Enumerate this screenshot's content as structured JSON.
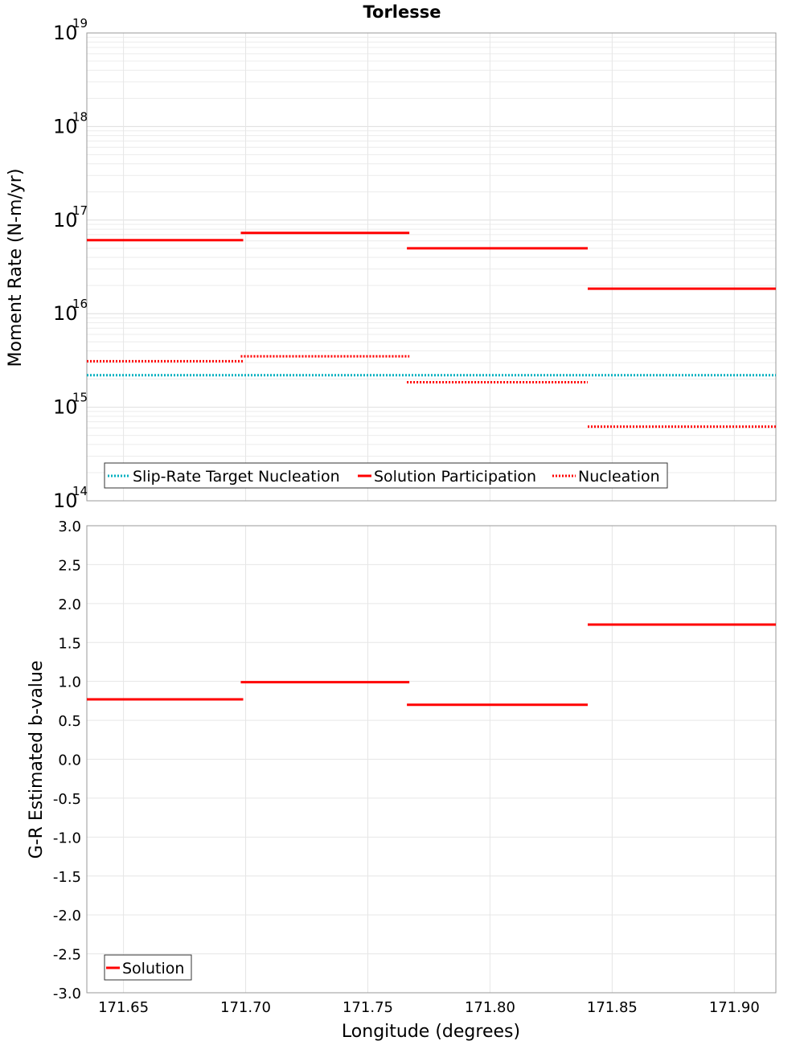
{
  "chart_data": [
    {
      "type": "line",
      "title": "Torlesse",
      "xlabel": "",
      "ylabel": "Moment Rate (N-m/yr)",
      "yscale": "log",
      "xlim": [
        171.635,
        171.917
      ],
      "ylim": [
        100000000000000.0,
        1e+19
      ],
      "ytick_exponents": [
        14,
        15,
        16,
        17,
        18,
        19
      ],
      "ytick_base": "10",
      "grid": true,
      "legend_position": "bottom-left",
      "series": [
        {
          "name": "Slip-Rate Target Nucleation",
          "style": "dotted",
          "color": "#00b0c0",
          "segments": [
            {
              "x0": 171.635,
              "x1": 171.917,
              "y": 2200000000000000.0
            }
          ]
        },
        {
          "name": "Solution Participation",
          "style": "solid",
          "color": "#ff0000",
          "segments": [
            {
              "x0": 171.635,
              "x1": 171.699,
              "y": 6.1e+16
            },
            {
              "x0": 171.698,
              "x1": 171.767,
              "y": 7.3e+16
            },
            {
              "x0": 171.766,
              "x1": 171.84,
              "y": 5e+16
            },
            {
              "x0": 171.84,
              "x1": 171.917,
              "y": 1.85e+16
            }
          ]
        },
        {
          "name": "Nucleation",
          "style": "dotted",
          "color": "#ff0000",
          "segments": [
            {
              "x0": 171.635,
              "x1": 171.699,
              "y": 3100000000000000.0
            },
            {
              "x0": 171.698,
              "x1": 171.767,
              "y": 3500000000000000.0
            },
            {
              "x0": 171.766,
              "x1": 171.84,
              "y": 1850000000000000.0
            },
            {
              "x0": 171.84,
              "x1": 171.917,
              "y": 620000000000000.0
            }
          ]
        }
      ]
    },
    {
      "type": "line",
      "title": "",
      "xlabel": "Longitude (degrees)",
      "ylabel": "G-R Estimated b-value",
      "xlim": [
        171.635,
        171.917
      ],
      "ylim": [
        -3.0,
        3.0
      ],
      "xticks": [
        "171.65",
        "171.70",
        "171.75",
        "171.80",
        "171.85",
        "171.90"
      ],
      "xtick_values": [
        171.65,
        171.7,
        171.75,
        171.8,
        171.85,
        171.9
      ],
      "yticks": [
        "3.0",
        "2.5",
        "2.0",
        "1.5",
        "1.0",
        "0.5",
        "0.0",
        "-0.5",
        "-1.0",
        "-1.5",
        "-2.0",
        "-2.5",
        "-3.0"
      ],
      "ytick_values": [
        3.0,
        2.5,
        2.0,
        1.5,
        1.0,
        0.5,
        0.0,
        -0.5,
        -1.0,
        -1.5,
        -2.0,
        -2.5,
        -3.0
      ],
      "grid": true,
      "legend_position": "bottom-left",
      "series": [
        {
          "name": "Solution",
          "style": "solid",
          "color": "#ff0000",
          "segments": [
            {
              "x0": 171.635,
              "x1": 171.699,
              "y": 0.77
            },
            {
              "x0": 171.698,
              "x1": 171.767,
              "y": 0.99
            },
            {
              "x0": 171.766,
              "x1": 171.84,
              "y": 0.7
            },
            {
              "x0": 171.84,
              "x1": 171.917,
              "y": 1.73
            }
          ]
        }
      ]
    }
  ]
}
